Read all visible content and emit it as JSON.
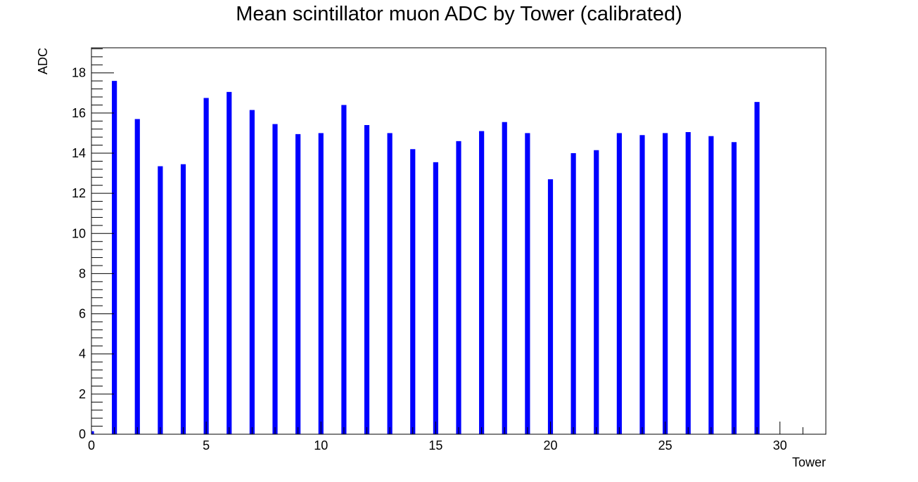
{
  "chart_data": {
    "type": "bar",
    "title": "Mean scintillator muon ADC by Tower (calibrated)",
    "xlabel": "Tower",
    "ylabel": "ADC",
    "xlim": [
      0,
      32
    ],
    "ylim": [
      0,
      19.25
    ],
    "x_ticks": [
      0,
      5,
      10,
      15,
      20,
      25,
      30
    ],
    "y_ticks": [
      0,
      2,
      4,
      6,
      8,
      10,
      12,
      14,
      16,
      18
    ],
    "bar_color": "#0000ff",
    "grid": false,
    "x": [
      0,
      1,
      2,
      3,
      4,
      5,
      6,
      7,
      8,
      9,
      10,
      11,
      12,
      13,
      14,
      15,
      16,
      17,
      18,
      19,
      20,
      21,
      22,
      23,
      24,
      25,
      26,
      27,
      28,
      29,
      30,
      31
    ],
    "values": [
      0.15,
      17.6,
      15.7,
      13.35,
      13.45,
      16.75,
      17.05,
      16.15,
      15.45,
      14.95,
      15.0,
      16.4,
      15.4,
      15.0,
      14.2,
      13.55,
      14.6,
      15.1,
      15.55,
      15.0,
      12.7,
      14.0,
      14.15,
      15.0,
      14.9,
      15.0,
      15.05,
      14.85,
      14.55,
      16.55,
      0.0,
      0.0
    ]
  }
}
